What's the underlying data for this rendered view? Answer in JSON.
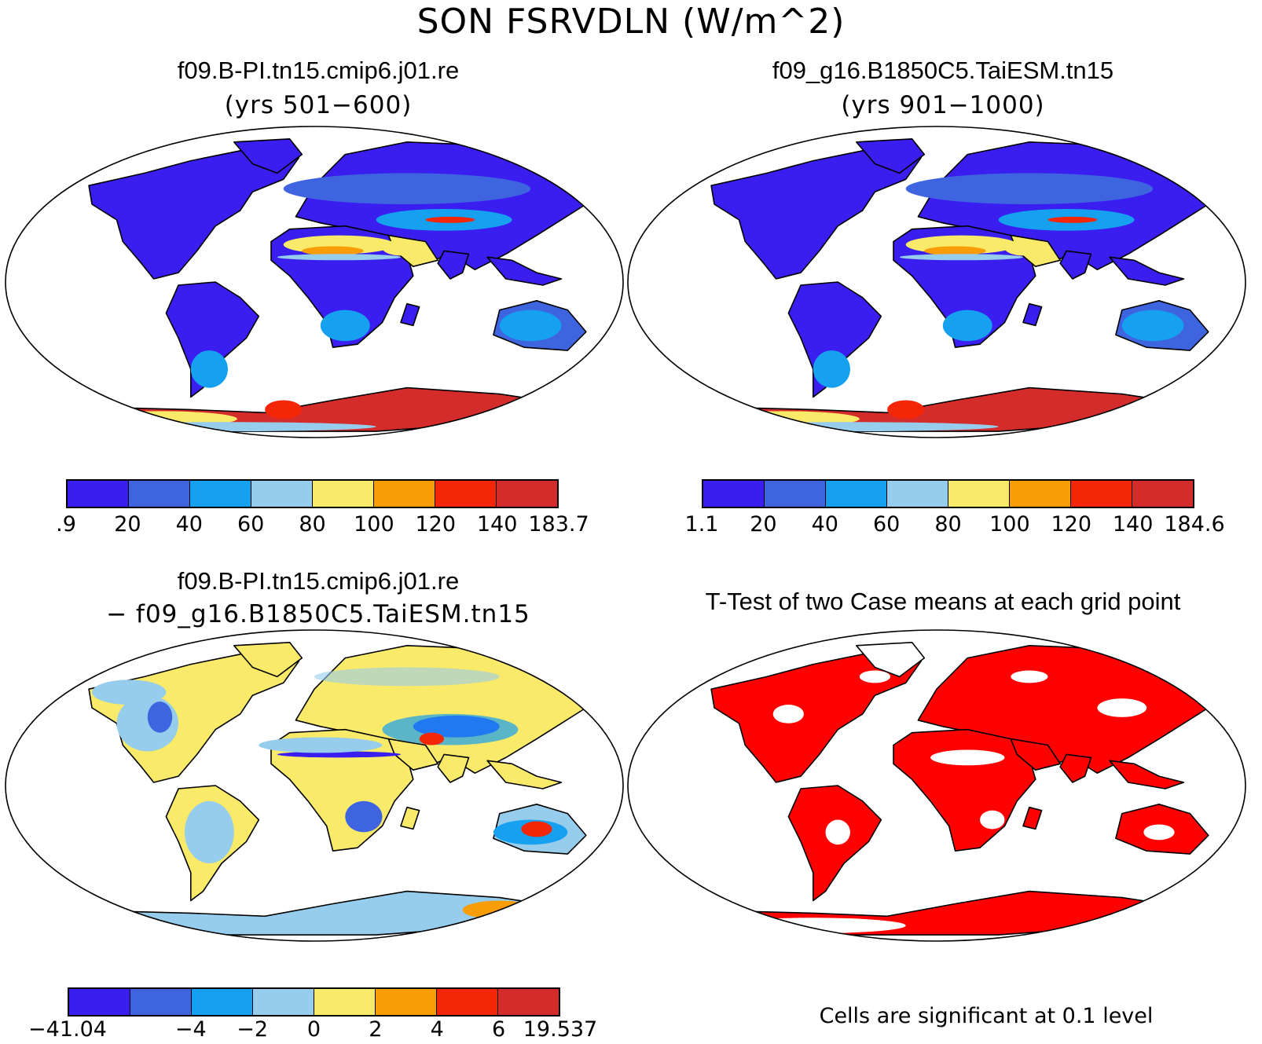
{
  "title": "SON FSRVDLN (W/m^2)",
  "panels": [
    {
      "title": "f09.B-PI.tn15.cmip6.j01.re",
      "subtitle": "(yrs 501−600)"
    },
    {
      "title": "f09_g16.B1850C5.TaiESM.tn15",
      "subtitle": "(yrs 901−1000)"
    },
    {
      "title": "f09.B-PI.tn15.cmip6.j01.re",
      "subtitle": "− f09_g16.B1850C5.TaiESM.tn15"
    },
    {
      "title": "T-Test of two Case means at each grid point",
      "subtitle": ""
    }
  ],
  "colorbars": [
    {
      "colors": [
        "#3a1ef0",
        "#3e64e0",
        "#16a0f0",
        "#96ccec",
        "#faea6a",
        "#f89c08",
        "#f42608",
        "#d42b2b"
      ],
      "labels": [
        ".9",
        "20",
        "40",
        "60",
        "80",
        "100",
        "120",
        "140",
        "183.7"
      ]
    },
    {
      "colors": [
        "#3a1ef0",
        "#3e64e0",
        "#16a0f0",
        "#96ccec",
        "#faea6a",
        "#f89c08",
        "#f42608",
        "#d42b2b"
      ],
      "labels": [
        "1.1",
        "20",
        "40",
        "60",
        "80",
        "100",
        "120",
        "140",
        "184.6"
      ]
    },
    {
      "colors": [
        "#3a1ef0",
        "#3e64e0",
        "#16a0f0",
        "#96ccec",
        "#faea6a",
        "#f89c08",
        "#f42608",
        "#d42b2b"
      ],
      "labels": [
        "−41.04",
        "",
        "−4",
        "−2",
        "0",
        "2",
        "4",
        "6",
        "19.537"
      ]
    }
  ],
  "significance_note": "Cells are significant at 0.1 level",
  "significance_color": "#ff0000",
  "map_ocean_color": "#ffffff"
}
